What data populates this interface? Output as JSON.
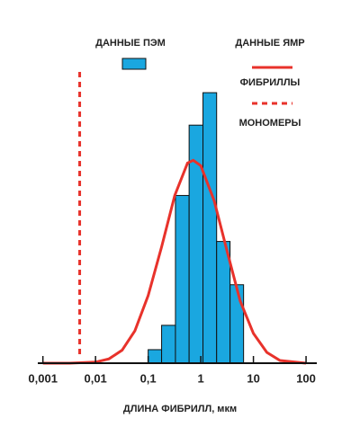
{
  "chart_data": {
    "type": "histogram",
    "x_label": "ДЛИНА ФИБРИЛЛ, мкм",
    "xscale": "log",
    "xlim": [
      0.0008,
      160
    ],
    "xticks": [
      {
        "value": 0.001,
        "label": "0,001"
      },
      {
        "value": 0.01,
        "label": "0,01"
      },
      {
        "value": 0.1,
        "label": "0,1"
      },
      1,
      10,
      100
    ],
    "ylim": [
      0,
      110
    ],
    "bins": [
      0.1,
      0.18,
      0.33,
      0.6,
      1.1,
      2,
      3.6,
      6.5
    ],
    "series": [
      {
        "name": "ДАННЫЕ ПЭМ",
        "color": "#1aa7e0",
        "values": [
          5,
          14,
          62,
          88,
          100,
          45,
          29
        ]
      }
    ],
    "legend_group": "ДАННЫЕ ЯМР",
    "overlays": [
      {
        "type": "line",
        "name": "ФИБРИЛЛЫ",
        "color": "#e8322b",
        "x": [
          0.001,
          0.0032,
          0.01,
          0.018,
          0.032,
          0.056,
          0.1,
          0.18,
          0.32,
          0.56,
          0.72,
          1,
          1.8,
          3.2,
          5.6,
          10,
          18,
          32,
          100
        ],
        "values": [
          0,
          0,
          0.4,
          1.6,
          4.8,
          12,
          25,
          43,
          62,
          74,
          75,
          73,
          60,
          41,
          23,
          11,
          4,
          1,
          0
        ]
      },
      {
        "type": "vline",
        "name": "МОНОМЕРЫ",
        "color": "#e8322b",
        "dashed": true,
        "x": 0.005
      }
    ]
  }
}
